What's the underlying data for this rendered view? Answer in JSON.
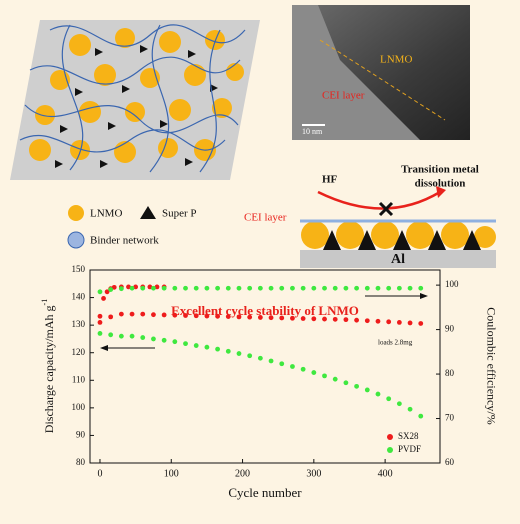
{
  "schematic": {
    "legend": [
      "LNMO",
      "Super P",
      "Binder network"
    ]
  },
  "tem": {
    "label": "LNMO",
    "layer": "CEI layer",
    "scale": "10 nm"
  },
  "mechanism": {
    "reactant": "HF",
    "product": [
      "Transition metal",
      "dissolution"
    ],
    "layer": "CEI layer",
    "substrate": "Al"
  },
  "chart_data": {
    "type": "scatter",
    "annotation": "Excellent cycle stability of LNMO",
    "note": "loads 2.8mg",
    "xlabel": "Cycle number",
    "ylabel": "Discharge capacity/mAh g",
    "ylabel_sup": "-1",
    "y2label": "Coulombic efficiency/%",
    "xlim": [
      -14,
      477
    ],
    "xticks": [
      0,
      100,
      200,
      300,
      400
    ],
    "ylim": [
      80,
      150
    ],
    "yticks": [
      80,
      90,
      100,
      110,
      120,
      130,
      140,
      150
    ],
    "y2lim": [
      60,
      103.4
    ],
    "y2ticks": [
      60,
      70,
      80,
      90,
      100
    ],
    "legend": "lower right",
    "series": [
      {
        "name": "SX28",
        "color": "#ee1c1c",
        "x": [
          0,
          15,
          30,
          45,
          60,
          75,
          90,
          105,
          120,
          135,
          150,
          165,
          180,
          195,
          210,
          225,
          240,
          255,
          270,
          285,
          300,
          315,
          330,
          345,
          360,
          375,
          390,
          405,
          420,
          435,
          450
        ],
        "values": [
          131,
          133,
          134,
          134,
          134,
          133.8,
          133.7,
          133.6,
          133.5,
          133.4,
          133.3,
          133.2,
          133.1,
          133,
          132.9,
          132.8,
          132.7,
          132.6,
          132.5,
          132.4,
          132.3,
          132.2,
          132.1,
          132,
          131.8,
          131.6,
          131.4,
          131.2,
          131,
          130.8,
          130.6
        ]
      },
      {
        "name": "PVDF",
        "color": "#3fe83f",
        "x": [
          0,
          15,
          30,
          45,
          60,
          75,
          90,
          105,
          120,
          135,
          150,
          165,
          180,
          195,
          210,
          225,
          240,
          255,
          270,
          285,
          300,
          315,
          330,
          345,
          360,
          375,
          390,
          405,
          420,
          435,
          450
        ],
        "values": [
          127,
          126.5,
          126,
          126,
          125.5,
          125,
          124.5,
          124,
          123.3,
          122.6,
          122,
          121.3,
          120.5,
          119.7,
          118.9,
          118,
          117,
          116,
          115,
          114,
          112.8,
          111.6,
          110.4,
          109.1,
          107.8,
          106.5,
          105,
          103.3,
          101.5,
          99.5,
          97
        ]
      },
      {
        "color": "#ee1c1c",
        "axis": "y2",
        "x": [
          0,
          5,
          10,
          15,
          20,
          30,
          40,
          50,
          60,
          70,
          80,
          90
        ],
        "values": [
          93,
          97,
          98.5,
          99.2,
          99.5,
          99.6,
          99.6,
          99.6,
          99.6,
          99.6,
          99.6,
          99.6
        ]
      },
      {
        "color": "#3fe83f",
        "axis": "y2",
        "x": [
          0,
          15,
          30,
          45,
          60,
          75,
          90,
          105,
          120,
          135,
          150,
          165,
          180,
          195,
          210,
          225,
          240,
          255,
          270,
          285,
          300,
          315,
          330,
          345,
          360,
          375,
          390,
          405,
          420,
          435,
          450
        ],
        "values": [
          98.5,
          99,
          99.2,
          99.3,
          99.3,
          99.3,
          99.3,
          99.3,
          99.3,
          99.3,
          99.3,
          99.3,
          99.3,
          99.3,
          99.3,
          99.3,
          99.3,
          99.3,
          99.3,
          99.3,
          99.3,
          99.3,
          99.3,
          99.3,
          99.3,
          99.3,
          99.3,
          99.3,
          99.3,
          99.3,
          99.3
        ]
      }
    ]
  }
}
